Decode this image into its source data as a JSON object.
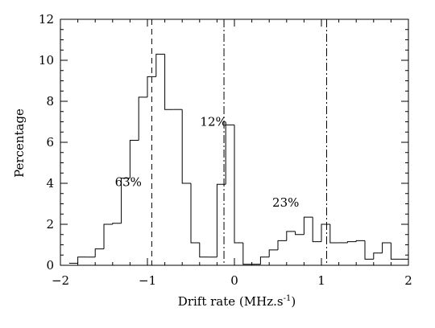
{
  "chart_data": {
    "type": "histogram",
    "xlabel": "Drift rate (MHz.s",
    "xlabel_sup": "-1",
    "xlabel_close": ")",
    "ylabel": "Percentage",
    "xlim": [
      -2,
      2
    ],
    "ylim": [
      0,
      12
    ],
    "x_ticks": [
      -2,
      -1,
      0,
      1,
      2
    ],
    "x_tick_labels": [
      "−2",
      "−1",
      "0",
      "1",
      "2"
    ],
    "y_ticks": [
      0,
      2,
      4,
      6,
      8,
      10,
      12
    ],
    "y_tick_labels": [
      "0",
      "2",
      "4",
      "6",
      "8",
      "10",
      "12"
    ],
    "bin_width": 0.1,
    "bins": [
      {
        "x0": -1.9,
        "x1": -1.8,
        "y": 0.1
      },
      {
        "x0": -1.8,
        "x1": -1.7,
        "y": 0.4
      },
      {
        "x0": -1.7,
        "x1": -1.6,
        "y": 0.4
      },
      {
        "x0": -1.6,
        "x1": -1.5,
        "y": 0.8
      },
      {
        "x0": -1.5,
        "x1": -1.4,
        "y": 2.0
      },
      {
        "x0": -1.4,
        "x1": -1.3,
        "y": 2.05
      },
      {
        "x0": -1.3,
        "x1": -1.2,
        "y": 4.25
      },
      {
        "x0": -1.2,
        "x1": -1.1,
        "y": 6.1
      },
      {
        "x0": -1.1,
        "x1": -1.0,
        "y": 8.2
      },
      {
        "x0": -1.0,
        "x1": -0.9,
        "y": 9.2
      },
      {
        "x0": -0.9,
        "x1": -0.8,
        "y": 10.3
      },
      {
        "x0": -0.8,
        "x1": -0.7,
        "y": 7.6
      },
      {
        "x0": -0.7,
        "x1": -0.6,
        "y": 7.6
      },
      {
        "x0": -0.6,
        "x1": -0.5,
        "y": 4.0
      },
      {
        "x0": -0.5,
        "x1": -0.4,
        "y": 1.1
      },
      {
        "x0": -0.4,
        "x1": -0.3,
        "y": 0.4
      },
      {
        "x0": -0.3,
        "x1": -0.2,
        "y": 0.4
      },
      {
        "x0": -0.2,
        "x1": -0.1,
        "y": 3.95
      },
      {
        "x0": -0.1,
        "x1": 0.0,
        "y": 6.85
      },
      {
        "x0": 0.0,
        "x1": 0.1,
        "y": 1.1
      },
      {
        "x0": 0.1,
        "x1": 0.2,
        "y": 0.05
      },
      {
        "x0": 0.2,
        "x1": 0.3,
        "y": 0.05
      },
      {
        "x0": 0.3,
        "x1": 0.4,
        "y": 0.4
      },
      {
        "x0": 0.4,
        "x1": 0.5,
        "y": 0.75
      },
      {
        "x0": 0.5,
        "x1": 0.6,
        "y": 1.2
      },
      {
        "x0": 0.6,
        "x1": 0.7,
        "y": 1.65
      },
      {
        "x0": 0.7,
        "x1": 0.8,
        "y": 1.5
      },
      {
        "x0": 0.8,
        "x1": 0.9,
        "y": 2.35
      },
      {
        "x0": 0.9,
        "x1": 1.0,
        "y": 1.15
      },
      {
        "x0": 1.0,
        "x1": 1.1,
        "y": 2.0
      },
      {
        "x0": 1.1,
        "x1": 1.2,
        "y": 1.1
      },
      {
        "x0": 1.2,
        "x1": 1.3,
        "y": 1.1
      },
      {
        "x0": 1.3,
        "x1": 1.4,
        "y": 1.15
      },
      {
        "x0": 1.4,
        "x1": 1.5,
        "y": 1.2
      },
      {
        "x0": 1.5,
        "x1": 1.6,
        "y": 0.3
      },
      {
        "x0": 1.6,
        "x1": 1.7,
        "y": 0.6
      },
      {
        "x0": 1.7,
        "x1": 1.8,
        "y": 1.1
      },
      {
        "x0": 1.8,
        "x1": 1.9,
        "y": 0.3
      },
      {
        "x0": 1.9,
        "x1": 2.0,
        "y": 0.3
      }
    ],
    "vlines": [
      {
        "x": -0.95,
        "style": "dashed"
      },
      {
        "x": -0.12,
        "style": "dash-dot"
      },
      {
        "x": 1.06,
        "style": "dash-dot"
      }
    ],
    "annotations": [
      {
        "text": "63%",
        "x": -1.22,
        "y": 4.05
      },
      {
        "text": "12%",
        "x": -0.24,
        "y": 7.0
      },
      {
        "text": "23%",
        "x": 0.59,
        "y": 3.05
      }
    ],
    "grid": false,
    "legend": "none",
    "colors": {
      "line": "#000000",
      "background": "#ffffff"
    }
  }
}
